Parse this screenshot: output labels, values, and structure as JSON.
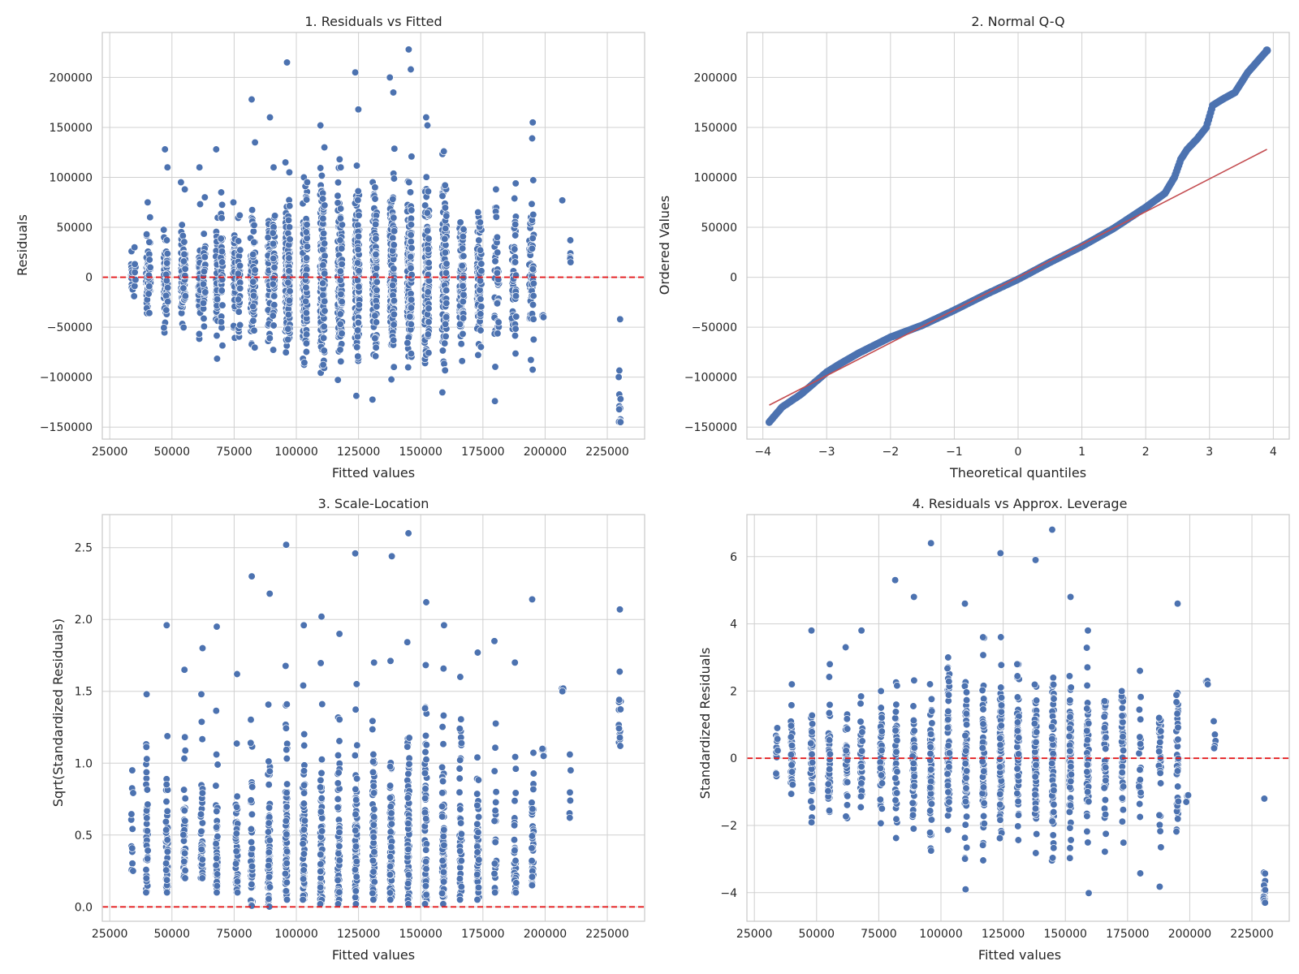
{
  "chart_data": [
    {
      "type": "scatter",
      "title": "1. Residuals vs Fitted",
      "xlabel": "Fitted values",
      "ylabel": "Residuals",
      "xlim": [
        22000,
        240000
      ],
      "ylim": [
        -162000,
        245000
      ],
      "xticks": [
        25000,
        50000,
        75000,
        100000,
        125000,
        150000,
        175000,
        200000,
        225000
      ],
      "xtick_labels": [
        "25000",
        "50000",
        "75000",
        "100000",
        "125000",
        "150000",
        "175000",
        "200000",
        "225000"
      ],
      "yticks": [
        -150000,
        -100000,
        -50000,
        0,
        50000,
        100000,
        150000,
        200000
      ],
      "ytick_labels": [
        "−150000",
        "−100000",
        "−50000",
        "0",
        "50000",
        "100000",
        "150000",
        "200000"
      ],
      "grid": true,
      "reference_line": {
        "y": 0,
        "style": "dashed",
        "color": "#e41a1c"
      },
      "points": {
        "seed": 11,
        "columns": [
          [
            34000,
            14,
            10000,
            0,
            26000
          ],
          [
            35000,
            6,
            12000,
            0,
            30000
          ],
          [
            40000,
            35,
            18000,
            0,
            75000
          ],
          [
            41000,
            28,
            16000,
            0,
            60000
          ],
          [
            47000,
            40,
            22000,
            0,
            128000
          ],
          [
            48000,
            30,
            20000,
            0,
            110000
          ],
          [
            54000,
            45,
            24000,
            0,
            95000
          ],
          [
            55000,
            35,
            22000,
            0,
            88000
          ],
          [
            61000,
            38,
            26000,
            0,
            110000
          ],
          [
            63000,
            30,
            24000,
            0,
            80000
          ],
          [
            68000,
            42,
            28000,
            0,
            128000
          ],
          [
            70000,
            34,
            26000,
            0,
            85000
          ],
          [
            75000,
            40,
            26000,
            0,
            75000
          ],
          [
            77000,
            36,
            28000,
            0,
            62000
          ],
          [
            82000,
            48,
            30000,
            0,
            178000
          ],
          [
            83000,
            40,
            30000,
            0,
            135000
          ],
          [
            89000,
            60,
            32000,
            0,
            160000
          ],
          [
            91000,
            46,
            30000,
            0,
            110000
          ],
          [
            96000,
            80,
            38000,
            0,
            215000
          ],
          [
            97000,
            66,
            36000,
            0,
            105000
          ],
          [
            103000,
            75,
            38000,
            0,
            100000
          ],
          [
            104000,
            62,
            36000,
            0,
            95000
          ],
          [
            110000,
            78,
            40000,
            0,
            152000
          ],
          [
            111000,
            66,
            38000,
            0,
            130000
          ],
          [
            117000,
            72,
            40000,
            0,
            118000
          ],
          [
            118000,
            60,
            38000,
            0,
            110000
          ],
          [
            124000,
            80,
            42000,
            0,
            205000
          ],
          [
            125000,
            68,
            40000,
            0,
            168000
          ],
          [
            131000,
            72,
            42000,
            0,
            95000
          ],
          [
            132000,
            58,
            40000,
            0,
            90000
          ],
          [
            138000,
            72,
            42000,
            0,
            200000
          ],
          [
            139000,
            60,
            40000,
            0,
            185000
          ],
          [
            145000,
            70,
            44000,
            0,
            228000
          ],
          [
            146000,
            58,
            42000,
            0,
            208000
          ],
          [
            152000,
            66,
            44000,
            0,
            160000
          ],
          [
            153000,
            54,
            42000,
            0,
            152000
          ],
          [
            159000,
            62,
            44000,
            0,
            126000
          ],
          [
            160000,
            50,
            42000,
            0,
            92000
          ],
          [
            166000,
            46,
            42000,
            0,
            55000
          ],
          [
            167000,
            36,
            40000,
            0,
            48000
          ],
          [
            173000,
            44,
            40000,
            0,
            65000
          ],
          [
            174000,
            34,
            38000,
            0,
            55000
          ],
          [
            180000,
            24,
            38000,
            0,
            88000
          ],
          [
            181000,
            20,
            36000,
            0,
            40000
          ],
          [
            187000,
            28,
            40000,
            0,
            30000
          ],
          [
            188000,
            22,
            38000,
            0,
            94000
          ],
          [
            194000,
            36,
            42000,
            0,
            60000
          ],
          [
            195000,
            32,
            40000,
            0,
            155000
          ],
          [
            199000,
            4,
            30000,
            -40000,
            -38000
          ],
          [
            207000,
            3,
            20000,
            77000,
            77000
          ],
          [
            210000,
            6,
            20000,
            15000,
            37000
          ],
          [
            230000,
            14,
            25000,
            -145000,
            -42000
          ]
        ]
      }
    },
    {
      "type": "scatter",
      "title": "2. Normal Q-Q",
      "xlabel": "Theoretical quantiles",
      "ylabel": "Ordered Values",
      "xlim": [
        -4.25,
        4.25
      ],
      "ylim": [
        -162000,
        245000
      ],
      "xticks": [
        -4,
        -3,
        -2,
        -1,
        0,
        1,
        2,
        3,
        4
      ],
      "xtick_labels": [
        "−4",
        "−3",
        "−2",
        "−1",
        "0",
        "1",
        "2",
        "3",
        "4"
      ],
      "yticks": [
        -150000,
        -100000,
        -50000,
        0,
        50000,
        100000,
        150000,
        200000
      ],
      "ytick_labels": [
        "−150000",
        "−100000",
        "−50000",
        "0",
        "50000",
        "100000",
        "150000",
        "200000"
      ],
      "grid": true,
      "fit_line": {
        "x": [
          -3.9,
          3.9
        ],
        "y": [
          -128000,
          128000
        ],
        "color": "#c44e52"
      },
      "curve": {
        "x": [
          -3.9,
          -3.7,
          -3.4,
          -3.2,
          -3.0,
          -2.8,
          -2.5,
          -2.0,
          -1.5,
          -1.0,
          -0.5,
          0.0,
          0.5,
          1.0,
          1.5,
          2.0,
          2.3,
          2.45,
          2.55,
          2.65,
          2.8,
          2.95,
          3.05,
          3.2,
          3.4,
          3.6,
          3.75,
          3.9
        ],
        "y": [
          -145000,
          -130000,
          -117000,
          -106000,
          -95000,
          -87000,
          -76000,
          -60000,
          -48000,
          -33000,
          -17000,
          -2000,
          15000,
          31000,
          49000,
          70000,
          84000,
          100000,
          118000,
          128000,
          138000,
          150000,
          172000,
          178000,
          185000,
          205000,
          216000,
          227000
        ]
      }
    },
    {
      "type": "scatter",
      "title": "3. Scale-Location",
      "xlabel": "Fitted values",
      "ylabel": "Sqrt(Standardized Residuals)",
      "xlim": [
        22000,
        240000
      ],
      "ylim": [
        -0.1,
        2.73
      ],
      "xticks": [
        25000,
        50000,
        75000,
        100000,
        125000,
        150000,
        175000,
        200000,
        225000
      ],
      "xtick_labels": [
        "25000",
        "50000",
        "75000",
        "100000",
        "125000",
        "150000",
        "175000",
        "200000",
        "225000"
      ],
      "yticks": [
        0.0,
        0.5,
        1.0,
        1.5,
        2.0,
        2.5
      ],
      "ytick_labels": [
        "0.0",
        "0.5",
        "1.0",
        "1.5",
        "2.0",
        "2.5"
      ],
      "grid": true,
      "reference_line": {
        "y": 0,
        "style": "dashed",
        "color": "#e41a1c"
      },
      "points": {
        "seed": 23,
        "columns": [
          [
            34000,
            10,
            0.25,
            0.25,
            0.95
          ],
          [
            40000,
            36,
            0.3,
            0.1,
            1.48
          ],
          [
            48000,
            38,
            0.32,
            0.1,
            1.96
          ],
          [
            55000,
            40,
            0.3,
            0.2,
            1.65
          ],
          [
            62000,
            38,
            0.32,
            0.2,
            1.8
          ],
          [
            68000,
            42,
            0.34,
            0.1,
            1.95
          ],
          [
            76000,
            42,
            0.32,
            0.1,
            1.62
          ],
          [
            82000,
            46,
            0.35,
            0.0,
            2.3
          ],
          [
            89000,
            60,
            0.36,
            0.0,
            2.18
          ],
          [
            96000,
            80,
            0.38,
            0.05,
            2.52
          ],
          [
            103000,
            75,
            0.38,
            0.05,
            1.96
          ],
          [
            110000,
            80,
            0.4,
            0.02,
            2.02
          ],
          [
            117000,
            72,
            0.38,
            0.02,
            1.9
          ],
          [
            124000,
            80,
            0.4,
            0.02,
            2.46
          ],
          [
            131000,
            70,
            0.38,
            0.05,
            1.7
          ],
          [
            138000,
            72,
            0.4,
            0.05,
            2.44
          ],
          [
            145000,
            72,
            0.4,
            0.02,
            2.6
          ],
          [
            152000,
            66,
            0.4,
            0.02,
            2.12
          ],
          [
            159000,
            62,
            0.4,
            0.02,
            1.96
          ],
          [
            166000,
            46,
            0.4,
            0.05,
            1.6
          ],
          [
            173000,
            42,
            0.38,
            0.05,
            1.77
          ],
          [
            180000,
            22,
            0.36,
            0.1,
            1.85
          ],
          [
            188000,
            30,
            0.38,
            0.1,
            1.7
          ],
          [
            195000,
            36,
            0.4,
            0.15,
            2.14
          ],
          [
            199000,
            3,
            0.1,
            1.05,
            1.1
          ],
          [
            207000,
            2,
            0.1,
            1.5,
            1.52
          ],
          [
            210000,
            4,
            0.15,
            0.62,
            1.06
          ],
          [
            230000,
            14,
            0.18,
            1.12,
            2.07
          ]
        ]
      }
    },
    {
      "type": "scatter",
      "title": "4. Residuals vs Approx. Leverage",
      "xlabel": "Fitted values",
      "ylabel": "Standardized Residuals",
      "xlim": [
        22000,
        240000
      ],
      "ylim": [
        -4.85,
        7.25
      ],
      "xticks": [
        25000,
        50000,
        75000,
        100000,
        125000,
        150000,
        175000,
        200000,
        225000
      ],
      "xtick_labels": [
        "25000",
        "50000",
        "75000",
        "100000",
        "125000",
        "150000",
        "175000",
        "200000",
        "225000"
      ],
      "yticks": [
        -4,
        -2,
        0,
        2,
        4,
        6
      ],
      "ytick_labels": [
        "−4",
        "−2",
        "0",
        "2",
        "4",
        "6"
      ],
      "grid": true,
      "reference_line": {
        "y": 0,
        "style": "dashed",
        "color": "#e41a1c"
      },
      "points": {
        "seed": 37,
        "columns": [
          [
            34000,
            14,
            0.35,
            0,
            0.9
          ],
          [
            40000,
            36,
            0.6,
            0,
            2.2
          ],
          [
            48000,
            38,
            0.8,
            0,
            3.8
          ],
          [
            55000,
            40,
            0.8,
            0,
            2.8
          ],
          [
            62000,
            38,
            0.85,
            0,
            3.3
          ],
          [
            68000,
            42,
            0.9,
            0,
            3.8
          ],
          [
            76000,
            42,
            0.85,
            0,
            2.0
          ],
          [
            82000,
            46,
            0.95,
            0,
            5.3
          ],
          [
            89000,
            60,
            1.0,
            0,
            4.8
          ],
          [
            96000,
            80,
            1.1,
            0,
            6.4
          ],
          [
            103000,
            75,
            1.1,
            0,
            3.0
          ],
          [
            110000,
            80,
            1.2,
            0,
            4.6
          ],
          [
            117000,
            72,
            1.1,
            0,
            3.6
          ],
          [
            124000,
            80,
            1.2,
            0,
            6.1
          ],
          [
            131000,
            70,
            1.1,
            0,
            2.8
          ],
          [
            138000,
            72,
            1.2,
            0,
            5.9
          ],
          [
            145000,
            72,
            1.2,
            0,
            6.8
          ],
          [
            152000,
            66,
            1.2,
            0,
            4.8
          ],
          [
            159000,
            62,
            1.2,
            0,
            3.8
          ],
          [
            166000,
            46,
            1.1,
            0,
            1.7
          ],
          [
            173000,
            42,
            1.1,
            0,
            2.0
          ],
          [
            180000,
            22,
            1.1,
            0,
            2.6
          ],
          [
            188000,
            30,
            1.1,
            0,
            1.2
          ],
          [
            195000,
            36,
            1.2,
            0,
            4.6
          ],
          [
            199000,
            3,
            0.5,
            -1.3,
            -1.1
          ],
          [
            207000,
            2,
            0.3,
            2.2,
            2.3
          ],
          [
            210000,
            4,
            0.4,
            0.3,
            1.1
          ],
          [
            230000,
            14,
            0.8,
            -4.3,
            -1.2
          ]
        ]
      }
    }
  ]
}
